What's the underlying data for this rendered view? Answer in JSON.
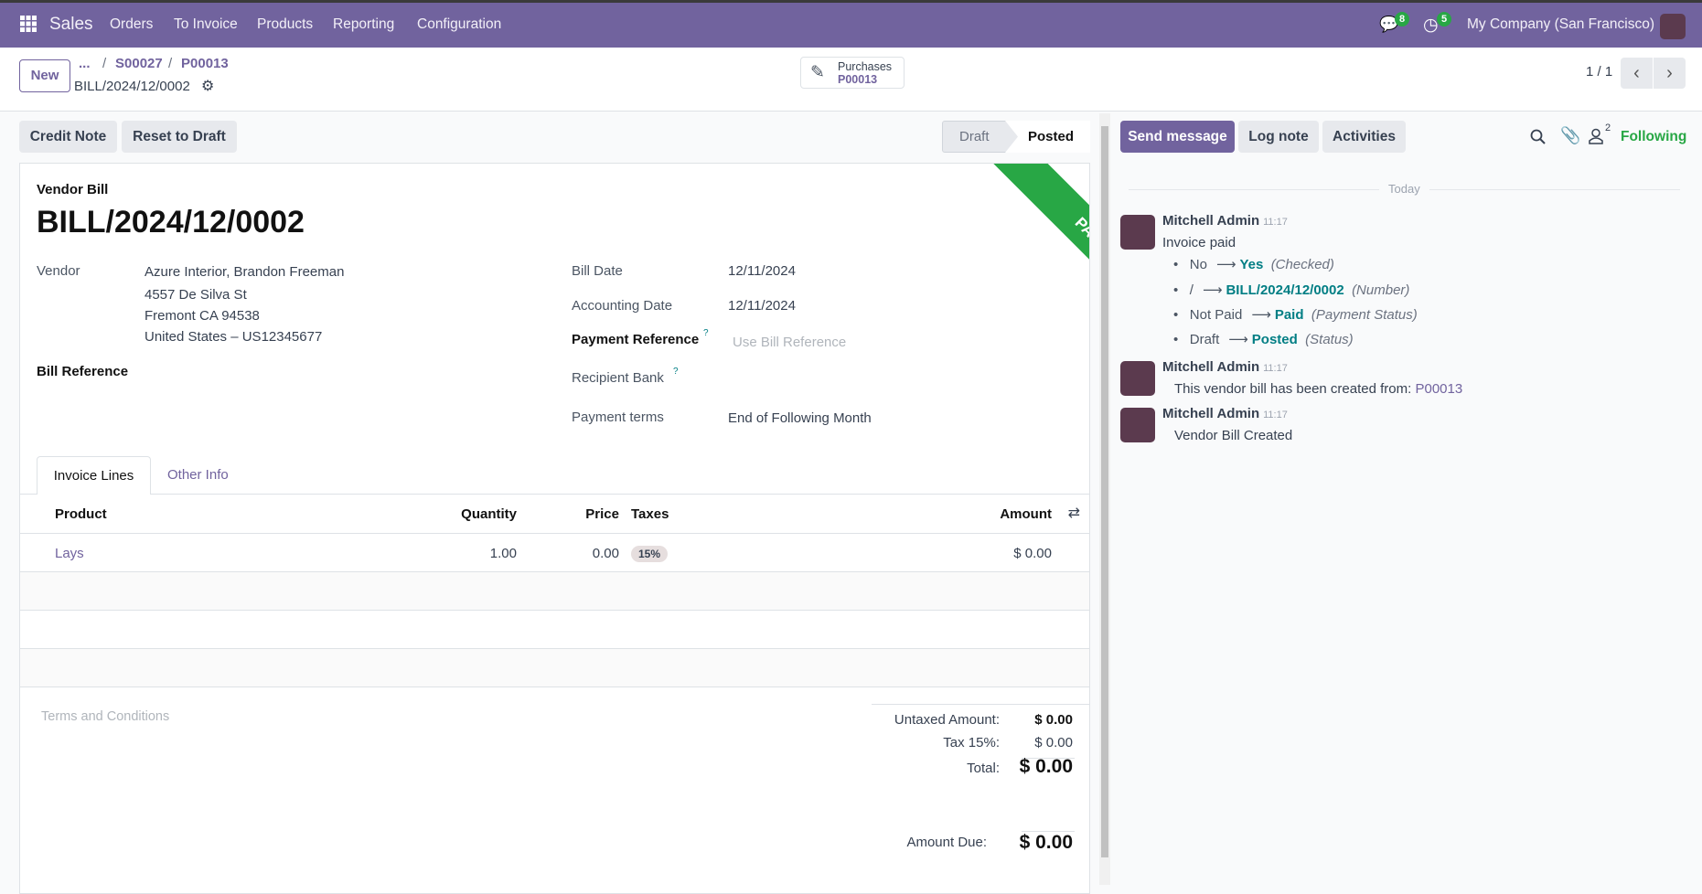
{
  "navbar": {
    "app": "Sales",
    "menu": [
      "Orders",
      "To Invoice",
      "Products",
      "Reporting",
      "Configuration"
    ],
    "messages_count": "8",
    "activities_count": "5",
    "company": "My Company (San Francisco)",
    "color": "#71639e"
  },
  "control": {
    "new_label": "New",
    "breadcrumb": [
      "...",
      "S00027",
      "P00013"
    ],
    "record": "BILL/2024/12/0002",
    "smart_button": {
      "label": "Purchases",
      "value": "P00013"
    },
    "pager": "1 / 1"
  },
  "actions": {
    "credit_note": "Credit Note",
    "reset": "Reset to Draft",
    "status": [
      "Draft",
      "Posted"
    ],
    "active_status": "Posted"
  },
  "form": {
    "type_label": "Vendor Bill",
    "title": "BILL/2024/12/0002",
    "ribbon": "PAID",
    "vendor_label": "Vendor",
    "vendor": "Azure Interior, Brandon Freeman",
    "address": [
      "4557 De Silva St",
      "Fremont CA 94538",
      "United States – US12345677"
    ],
    "bill_reference_label": "Bill Reference",
    "bill_date_label": "Bill Date",
    "bill_date": "12/11/2024",
    "accounting_date_label": "Accounting Date",
    "accounting_date": "12/11/2024",
    "payment_reference_label": "Payment Reference",
    "payment_reference_placeholder": "Use Bill Reference",
    "recipient_bank_label": "Recipient Bank",
    "payment_terms_label": "Payment terms",
    "payment_terms": "End of Following Month",
    "tabs": [
      "Invoice Lines",
      "Other Info"
    ],
    "columns": {
      "product": "Product",
      "quantity": "Quantity",
      "price": "Price",
      "taxes": "Taxes",
      "amount": "Amount"
    },
    "lines": [
      {
        "product": "Lays",
        "quantity": "1.00",
        "price": "0.00",
        "taxes": "15%",
        "amount": "$ 0.00"
      }
    ],
    "terms_placeholder": "Terms and Conditions",
    "totals": {
      "untaxed_label": "Untaxed Amount:",
      "untaxed": "$ 0.00",
      "tax_label": "Tax 15%:",
      "tax": "$ 0.00",
      "total_label": "Total:",
      "total": "$ 0.00",
      "due_label": "Amount Due:",
      "due": "$ 0.00"
    }
  },
  "chatter": {
    "send_message": "Send message",
    "log_note": "Log note",
    "activities": "Activities",
    "followers": "2",
    "following": "Following",
    "date_separator": "Today",
    "messages": [
      {
        "author": "Mitchell Admin",
        "time": "11:17",
        "body": "Invoice paid",
        "changes": [
          {
            "old": "No",
            "new": "Yes",
            "field": "(Checked)"
          },
          {
            "old": "/",
            "new": "BILL/2024/12/0002",
            "field": "(Number)"
          },
          {
            "old": "Not Paid",
            "new": "Paid",
            "field": "(Payment Status)"
          },
          {
            "old": "Draft",
            "new": "Posted",
            "field": "(Status)"
          }
        ]
      },
      {
        "author": "Mitchell Admin",
        "time": "11:17",
        "body": "This vendor bill has been created from: ",
        "link": "P00013"
      },
      {
        "author": "Mitchell Admin",
        "time": "11:17",
        "body": "Vendor Bill Created"
      }
    ]
  }
}
